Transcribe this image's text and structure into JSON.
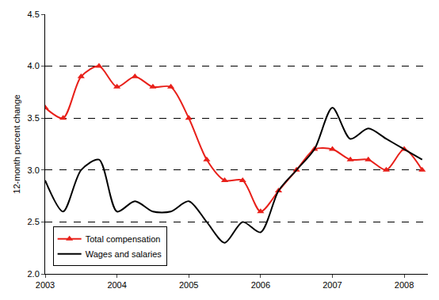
{
  "chart_data": {
    "type": "line",
    "y_label": "12-month percent change",
    "x": [
      2003,
      2003.25,
      2003.5,
      2003.75,
      2004,
      2004.25,
      2004.5,
      2004.75,
      2005,
      2005.25,
      2005.5,
      2005.75,
      2006,
      2006.25,
      2006.5,
      2006.75,
      2007,
      2007.25,
      2007.5,
      2007.75,
      2008,
      2008.25
    ],
    "series": [
      {
        "name": "Total compensation",
        "color": "#e8201a",
        "marker": "triangle-up",
        "values": [
          3.6,
          3.5,
          3.9,
          4.0,
          3.8,
          3.9,
          3.8,
          3.8,
          3.5,
          3.1,
          2.9,
          2.9,
          2.6,
          2.8,
          3.0,
          3.2,
          3.2,
          3.1,
          3.1,
          3.0,
          3.2,
          3.0
        ]
      },
      {
        "name": "Wages and salaries",
        "color": "#000000",
        "values": [
          2.9,
          2.6,
          3.0,
          3.1,
          2.6,
          2.7,
          2.6,
          2.6,
          2.7,
          2.5,
          2.3,
          2.5,
          2.4,
          2.8,
          3.0,
          3.2,
          3.6,
          3.3,
          3.4,
          3.3,
          3.2,
          3.1
        ]
      }
    ],
    "xlim": [
      2003,
      2008.33
    ],
    "xticks": [
      2003,
      2004,
      2005,
      2006,
      2007,
      2008
    ],
    "ylim": [
      2.0,
      4.5
    ],
    "yticks": [
      {
        "value": 2.0,
        "label": "2.0"
      },
      {
        "value": 2.5,
        "label": "2.5"
      },
      {
        "value": 3.0,
        "label": "3.0"
      },
      {
        "value": 3.5,
        "label": "3.5"
      },
      {
        "value": 4.0,
        "label": "4.0"
      },
      {
        "value": 4.5,
        "label": "4.5"
      }
    ],
    "grid": true,
    "legend": "lower left"
  }
}
